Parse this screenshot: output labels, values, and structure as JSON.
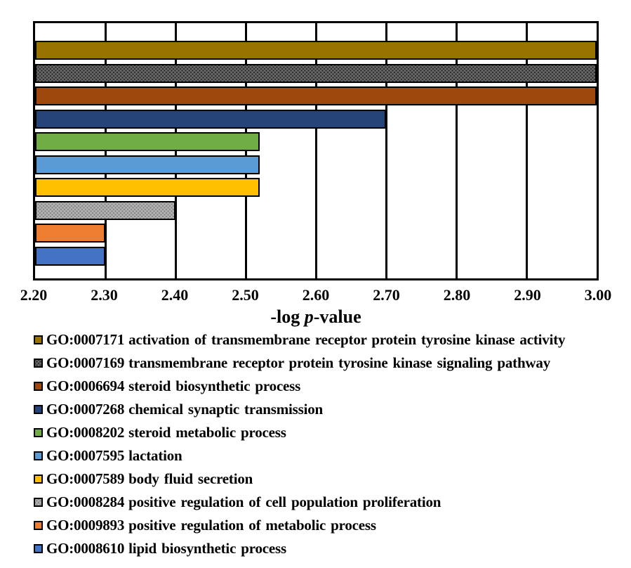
{
  "chart_data": {
    "type": "bar",
    "orientation": "horizontal",
    "xlabel_prefix": "-log ",
    "xlabel_italic": "p",
    "xlabel_suffix": "-value",
    "grid": true,
    "legend_position": "bottom",
    "bar_border_color": "#000000",
    "x_axis": {
      "min": 2.2,
      "max": 3.0,
      "tick_step": 0.1,
      "tick_labels": [
        "2.20",
        "2.30",
        "2.40",
        "2.50",
        "2.60",
        "2.70",
        "2.80",
        "2.90",
        "3.00"
      ]
    },
    "series": [
      {
        "go_id": "GO:0007171",
        "label": "activation of transmembrane receptor protein tyrosine kinase activity",
        "value": 3.0,
        "color": "#997300",
        "pattern": false
      },
      {
        "go_id": "GO:0007169",
        "label": "transmembrane receptor protein tyrosine kinase signaling pathway",
        "value": 3.0,
        "color": "#6B6B6B",
        "pattern": true,
        "pattern_dot": "#2E2E2E"
      },
      {
        "go_id": "GO:0006694",
        "label": "steroid biosynthetic process",
        "value": 3.0,
        "color": "#9E480E",
        "pattern": false
      },
      {
        "go_id": "GO:0007268",
        "label": "chemical synaptic transmission",
        "value": 2.7,
        "color": "#264478",
        "pattern": false
      },
      {
        "go_id": "GO:0008202",
        "label": "steroid metabolic process",
        "value": 2.52,
        "color": "#70AD47",
        "pattern": false
      },
      {
        "go_id": "GO:0007595",
        "label": "lactation",
        "value": 2.52,
        "color": "#5B9BD5",
        "pattern": false
      },
      {
        "go_id": "GO:0007589",
        "label": "body fluid secretion",
        "value": 2.52,
        "color": "#FFC000",
        "pattern": false
      },
      {
        "go_id": "GO:0008284",
        "label": "positive regulation of cell population proliferation",
        "value": 2.4,
        "color": "#B5B5B5",
        "pattern": true,
        "pattern_dot": "#878787"
      },
      {
        "go_id": "GO:0009893",
        "label": "positive regulation of metabolic process",
        "value": 2.3,
        "color": "#ED7D31",
        "pattern": false
      },
      {
        "go_id": "GO:0008610",
        "label": "lipid biosynthetic process",
        "value": 2.3,
        "color": "#4472C4",
        "pattern": false
      }
    ]
  }
}
